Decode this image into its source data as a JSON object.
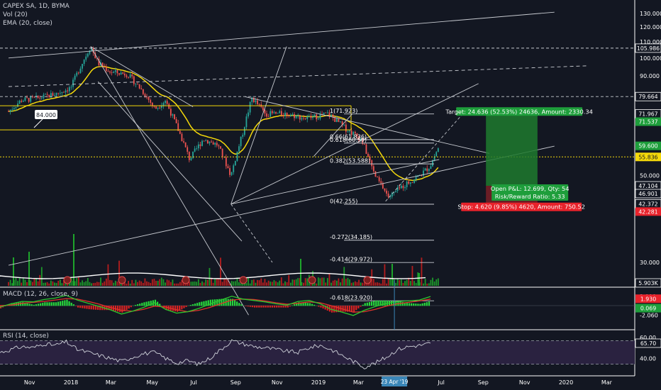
{
  "header": {
    "symbol_line": "CAPEX SA, 1D, BYMA",
    "vol_line": "Vol (20)",
    "ema_line": "EMA (20, close)",
    "macd_line": "MACD (12, 26, close, 9)",
    "rsi_line": "RSI (14, close)"
  },
  "colors": {
    "background": "#131722",
    "up": "#26a69a",
    "down": "#ef5350",
    "ema": "#f5d90a",
    "drawing": "#c8cbd1",
    "green_badge": "#1e9e3b",
    "red_badge": "#e8222b",
    "rsi_band": "#2a2240",
    "rsi_line": "#cfd2da",
    "macd_line": "#2ec62e",
    "signal_line": "#e0342c"
  },
  "chart_data": {
    "type": "candlestick",
    "symbol": "CAPEX SA",
    "interval": "1D",
    "exchange": "BYMA",
    "price_axis_labels": [
      "130.000",
      "120.000",
      "110.000",
      "100.000",
      "90.000",
      "50.000",
      "40.000",
      "30.000"
    ],
    "price_ylim": [
      25,
      135
    ],
    "time_axis_labels": [
      "Nov",
      "2018",
      "Mar",
      "May",
      "Jul",
      "Sep",
      "Nov",
      "2019",
      "Mar",
      "23 Apr '19",
      "Jul",
      "Sep",
      "Nov",
      "2020",
      "Mar"
    ],
    "price_path": [
      [
        "2017-10-01",
        73
      ],
      [
        "2017-10-20",
        78
      ],
      [
        "2017-11-15",
        79
      ],
      [
        "2017-12-10",
        81
      ],
      [
        "2018-01-01",
        84
      ],
      [
        "2018-01-20",
        99
      ],
      [
        "2018-01-30",
        107
      ],
      [
        "2018-02-10",
        97
      ],
      [
        "2018-03-01",
        92
      ],
      [
        "2018-03-25",
        91
      ],
      [
        "2018-04-15",
        83
      ],
      [
        "2018-05-05",
        74
      ],
      [
        "2018-05-20",
        78
      ],
      [
        "2018-06-01",
        70
      ],
      [
        "2018-06-25",
        55
      ],
      [
        "2018-07-15",
        62
      ],
      [
        "2018-08-05",
        60
      ],
      [
        "2018-08-25",
        50
      ],
      [
        "2018-09-10",
        63
      ],
      [
        "2018-09-25",
        79
      ],
      [
        "2018-10-15",
        72
      ],
      [
        "2018-11-15",
        72
      ],
      [
        "2018-12-15",
        70
      ],
      [
        "2019-01-15",
        72
      ],
      [
        "2019-02-10",
        66
      ],
      [
        "2019-03-05",
        62
      ],
      [
        "2019-03-25",
        50
      ],
      [
        "2019-04-15",
        44
      ],
      [
        "2019-05-05",
        47
      ],
      [
        "2019-05-30",
        50
      ],
      [
        "2019-06-15",
        53
      ],
      [
        "2019-06-28",
        59.6
      ]
    ],
    "levels": {
      "horizontal_dashed": [
        105.986,
        79.664
      ],
      "current_price": 55.836,
      "yellow_lines": [
        75.5,
        65.5
      ]
    },
    "fibonacci": [
      {
        "label": "1(71.923)",
        "value": 71.923
      },
      {
        "label": "0.66(61.836)",
        "value": 61.836
      },
      {
        "label": "0.618(60.59)",
        "value": 60.59
      },
      {
        "label": "0.382(53.588)",
        "value": 53.588
      },
      {
        "label": "0(42.255)",
        "value": 42.255
      },
      {
        "label": "-0.272(34.185)",
        "value": 34.185
      },
      {
        "label": "-0.414(29.972)",
        "value": 29.972
      },
      {
        "label": "-0.618(23.920)",
        "value": 23.92
      }
    ],
    "price_badges": [
      {
        "label": "105.986",
        "style": "outline"
      },
      {
        "label": "79.664",
        "style": "outline"
      },
      {
        "label": "71.967",
        "style": "outline"
      },
      {
        "label": "71.537",
        "style": "green"
      },
      {
        "label": "59.600",
        "style": "green"
      },
      {
        "label": "55.836",
        "style": "yellow"
      },
      {
        "label": "47.104",
        "style": "outline"
      },
      {
        "label": "46.901",
        "style": "outline"
      },
      {
        "label": "42.372",
        "style": "outline"
      },
      {
        "label": "42.281",
        "style": "red"
      },
      {
        "label": "5.903K",
        "style": "outline"
      }
    ],
    "annotation_84": "84.000",
    "position": {
      "target": "Target: 24.636 (52.53%) 24636, Amount: 2330.34",
      "open_pl": "Open P&L: 12.699, Qty: 54",
      "risk_reward": "Risk/Reward Ratio: 5.33",
      "stop": "Stop: 4.620 (9.85%) 4620, Amount: 750.52",
      "entry": 47.104,
      "target_price": 71.74,
      "stop_price": 42.484
    },
    "macd": {
      "axis_labels": [
        "2.000",
        "-2.060"
      ],
      "badges": [
        {
          "label": "1.930",
          "style": "red"
        },
        {
          "label": "0.069",
          "style": "green"
        }
      ],
      "macd_path": [
        -0.3,
        0.4,
        0.9,
        0.8,
        1.3,
        1.6,
        2.2,
        1.2,
        0.5,
        -0.2,
        -0.9,
        -1.8,
        -1.2,
        -0.4,
        0.6,
        -0.8,
        -1.6,
        -1.3,
        -0.6,
        0.3,
        1.2,
        2.0,
        1.4,
        1.1,
        0.8,
        0.4,
        0.1,
        0.9,
        1.1,
        0.4,
        -0.8,
        -1.4,
        -2.1,
        -1.0,
        -0.2,
        0.5,
        0.9,
        1.0,
        1.2,
        1.95
      ],
      "signal_path": [
        0.0,
        0.1,
        0.5,
        0.7,
        0.9,
        1.2,
        1.5,
        1.4,
        0.9,
        0.3,
        -0.4,
        -1.0,
        -1.2,
        -0.8,
        -0.1,
        -0.3,
        -0.9,
        -1.3,
        -1.0,
        -0.4,
        0.4,
        1.2,
        1.4,
        1.3,
        1.0,
        0.6,
        0.3,
        0.5,
        0.8,
        0.6,
        0.0,
        -0.7,
        -1.4,
        -1.3,
        -0.8,
        -0.1,
        0.4,
        0.7,
        1.0,
        1.4
      ]
    },
    "rsi": {
      "axis_labels": [
        "60.00",
        "40.00"
      ],
      "badge": "65.70",
      "upper": 70,
      "lower": 30,
      "rsi_path": [
        50,
        55,
        60,
        58,
        65,
        62,
        68,
        55,
        50,
        45,
        40,
        35,
        42,
        48,
        50,
        40,
        32,
        36,
        30,
        40,
        55,
        70,
        65,
        60,
        58,
        55,
        52,
        50,
        58,
        62,
        55,
        45,
        35,
        25,
        32,
        42,
        55,
        60,
        62,
        65.7
      ]
    }
  }
}
